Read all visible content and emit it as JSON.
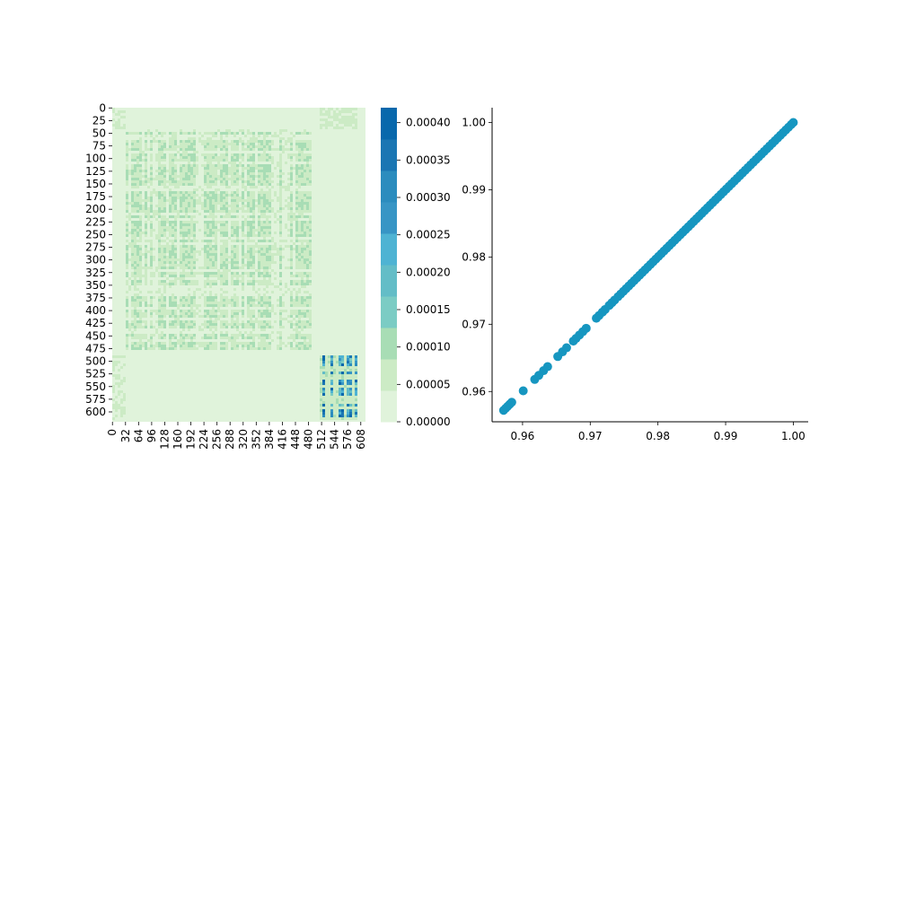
{
  "chart_data": [
    {
      "type": "heatmap",
      "title": "",
      "xlabel": "",
      "ylabel": "",
      "matrix_size": 620,
      "x_ticks": [
        "0",
        "32",
        "64",
        "96",
        "128",
        "160",
        "192",
        "224",
        "256",
        "288",
        "320",
        "352",
        "384",
        "416",
        "448",
        "480",
        "512",
        "544",
        "576",
        "608"
      ],
      "y_ticks": [
        "0",
        "25",
        "50",
        "75",
        "100",
        "125",
        "150",
        "175",
        "200",
        "225",
        "250",
        "275",
        "300",
        "325",
        "350",
        "375",
        "400",
        "425",
        "450",
        "475",
        "500",
        "525",
        "550",
        "575",
        "600"
      ],
      "value_range": [
        0,
        0.00042
      ],
      "regions": [
        {
          "rows": [
            40,
            480
          ],
          "cols": [
            32,
            490
          ],
          "level": "elevated",
          "approx_value": 8e-05
        },
        {
          "rows": [
            490,
            615
          ],
          "cols": [
            505,
            600
          ],
          "level": "highest",
          "approx_value": 0.0003
        },
        {
          "rows": [
            0,
            40
          ],
          "cols": [
            0,
            35
          ],
          "level": "low",
          "approx_value": 4e-05
        },
        {
          "rows": [
            0,
            40
          ],
          "cols": [
            505,
            600
          ],
          "level": "low",
          "approx_value": 5e-05
        },
        {
          "rows": [
            490,
            615
          ],
          "cols": [
            0,
            35
          ],
          "level": "low",
          "approx_value": 4e-05
        }
      ],
      "colorbar": {
        "ticks": [
          "0.00000",
          "0.00005",
          "0.00010",
          "0.00015",
          "0.00020",
          "0.00025",
          "0.00030",
          "0.00035",
          "0.00040"
        ],
        "tick_values": [
          0,
          5e-05,
          0.0001,
          0.00015,
          0.0002,
          0.00025,
          0.0003,
          0.00035,
          0.0004
        ],
        "min": 0,
        "max": 0.00042,
        "levels": 10,
        "colors": [
          "#e0f3db",
          "#ccebc5",
          "#a8ddb5",
          "#7bccc4",
          "#63bdc7",
          "#4eb3d3",
          "#3795c5",
          "#2b8cbe",
          "#1b76b3",
          "#0868ac"
        ]
      }
    },
    {
      "type": "scatter",
      "title": "",
      "xlabel": "",
      "ylabel": "",
      "xlim": [
        0.9555,
        1.0022
      ],
      "ylim": [
        0.9555,
        1.0022
      ],
      "x_ticks": [
        "0.96",
        "0.97",
        "0.98",
        "0.99",
        "1.00"
      ],
      "y_ticks": [
        "0.96",
        "0.97",
        "0.98",
        "0.99",
        "1.00"
      ],
      "grid": false,
      "color": "#1696c0",
      "series": [
        {
          "x": [
            0.9572,
            0.9575,
            0.9578,
            0.9581,
            0.9584,
            0.9601,
            0.9618,
            0.9624,
            0.9631,
            0.9637,
            0.9652,
            0.9659,
            0.9665,
            0.9675,
            0.9679,
            0.9684,
            0.9689,
            0.9694,
            0.9709,
            0.9713,
            0.9718,
            0.9722,
            0.9728,
            0.9732,
            0.9736,
            0.9741,
            0.9745,
            0.9749,
            0.9753,
            0.9757,
            0.9761,
            0.9765,
            0.9769,
            0.9773,
            0.9777,
            0.9781,
            0.9785,
            0.9789,
            0.9793,
            0.9797,
            0.9801,
            0.9805,
            0.9809,
            0.9813,
            0.9817,
            0.9821,
            0.9825,
            0.9829,
            0.9833,
            0.9837,
            0.9841,
            0.9845,
            0.9849,
            0.9853,
            0.9857,
            0.9861,
            0.9865,
            0.9869,
            0.9873,
            0.9877,
            0.9881,
            0.9885,
            0.9889,
            0.9893,
            0.9897,
            0.9901,
            0.9905,
            0.9909,
            0.9913,
            0.9917,
            0.9921,
            0.9925,
            0.9929,
            0.9933,
            0.9937,
            0.9941,
            0.9945,
            0.9949,
            0.9953,
            0.9957,
            0.9961,
            0.9965,
            0.9969,
            0.9973,
            0.9977,
            0.9981,
            0.9985,
            0.9989,
            0.9993,
            0.9997,
            1.0
          ],
          "y": [
            0.9572,
            0.9575,
            0.9578,
            0.9581,
            0.9584,
            0.9601,
            0.9618,
            0.9624,
            0.9631,
            0.9637,
            0.9652,
            0.9659,
            0.9665,
            0.9675,
            0.9679,
            0.9684,
            0.9689,
            0.9694,
            0.9709,
            0.9713,
            0.9718,
            0.9722,
            0.9728,
            0.9732,
            0.9736,
            0.9741,
            0.9745,
            0.9749,
            0.9753,
            0.9757,
            0.9761,
            0.9765,
            0.9769,
            0.9773,
            0.9777,
            0.9781,
            0.9785,
            0.9789,
            0.9793,
            0.9797,
            0.9801,
            0.9805,
            0.9809,
            0.9813,
            0.9817,
            0.9821,
            0.9825,
            0.9829,
            0.9833,
            0.9837,
            0.9841,
            0.9845,
            0.9849,
            0.9853,
            0.9857,
            0.9861,
            0.9865,
            0.9869,
            0.9873,
            0.9877,
            0.9881,
            0.9885,
            0.9889,
            0.9893,
            0.9897,
            0.9901,
            0.9905,
            0.9909,
            0.9913,
            0.9917,
            0.9921,
            0.9925,
            0.9929,
            0.9933,
            0.9937,
            0.9941,
            0.9945,
            0.9949,
            0.9953,
            0.9957,
            0.9961,
            0.9965,
            0.9969,
            0.9973,
            0.9977,
            0.9981,
            0.9985,
            0.9989,
            0.9993,
            0.9997,
            1.0
          ]
        }
      ]
    }
  ]
}
